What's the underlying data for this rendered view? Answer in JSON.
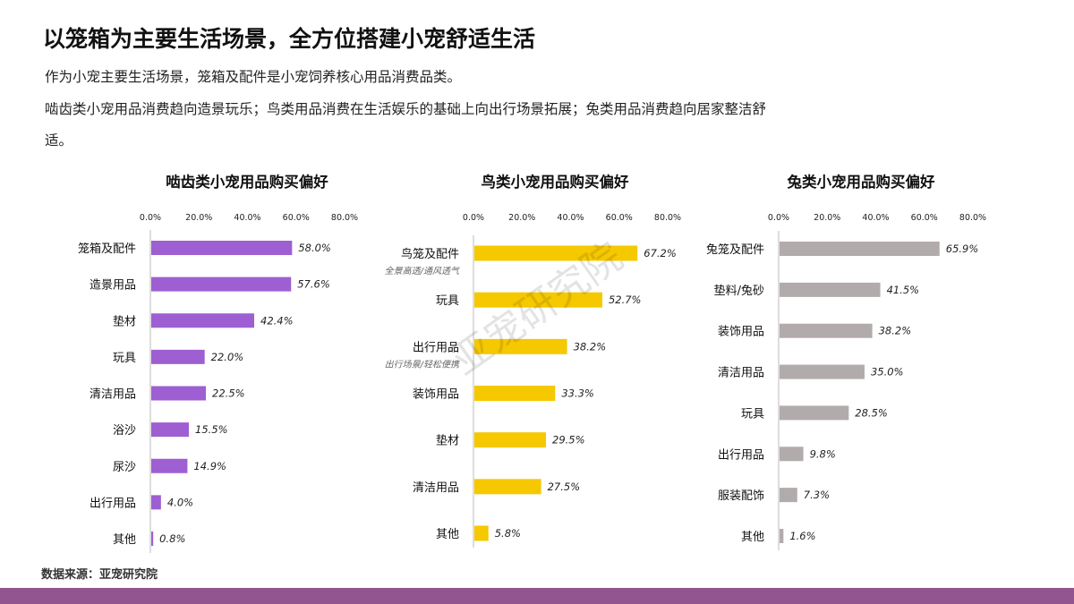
{
  "title": "以笼箱为主要生活场景，全方位搭建小宠舒适生活",
  "subtitle_lines": [
    "作为小宠主要生活场景，笼箱及配件是小宠饲养核心用品消费品类。",
    "啮齿类小宠用品消费趋向造景玩乐；鸟类用品消费在生活娱乐的基础上向出行场景拓展；兔类用品消费趋向居家整洁舒",
    "适。"
  ],
  "watermark": "亚宠研究院",
  "source": "数据来源：亚宠研究院",
  "colors": {
    "rodent": "#9e5fd2",
    "bird": "#f5c800",
    "rabbit": "#b2abab",
    "footer": "#92558f"
  },
  "chart_data": [
    {
      "type": "bar",
      "orientation": "horizontal",
      "title": "啮齿类小宠用品购买偏好",
      "xlim": [
        0,
        80
      ],
      "ticks": [
        "0.0%",
        "20.0%",
        "40.0%",
        "60.0%",
        "80.0%"
      ],
      "categories": [
        "笼箱及配件",
        "造景用品",
        "垫材",
        "玩具",
        "清洁用品",
        "浴沙",
        "尿沙",
        "出行用品",
        "其他"
      ],
      "values": [
        58.0,
        57.6,
        42.4,
        22.0,
        22.5,
        15.5,
        14.9,
        4.0,
        0.8
      ],
      "labels": [
        "58.0%",
        "57.6%",
        "42.4%",
        "22.0%",
        "22.5%",
        "15.5%",
        "14.9%",
        "4.0%",
        "0.8%"
      ],
      "notes": []
    },
    {
      "type": "bar",
      "orientation": "horizontal",
      "title": "鸟类小宠用品购买偏好",
      "xlim": [
        0,
        80
      ],
      "ticks": [
        "0.0%",
        "20.0%",
        "40.0%",
        "60.0%",
        "80.0%"
      ],
      "categories": [
        "鸟笼及配件",
        "玩具",
        "出行用品",
        "装饰用品",
        "垫材",
        "清洁用品",
        "其他"
      ],
      "values": [
        67.2,
        52.7,
        38.2,
        33.3,
        29.5,
        27.5,
        5.8
      ],
      "labels": [
        "67.2%",
        "52.7%",
        "38.2%",
        "33.3%",
        "29.5%",
        "27.5%",
        "5.8%"
      ],
      "notes": [
        "全景高透/通风透气",
        "",
        "出行场景/轻松便携",
        "",
        "",
        "",
        ""
      ]
    },
    {
      "type": "bar",
      "orientation": "horizontal",
      "title": "兔类小宠用品购买偏好",
      "xlim": [
        0,
        80
      ],
      "ticks": [
        "0.0%",
        "20.0%",
        "40.0%",
        "60.0%",
        "80.0%"
      ],
      "categories": [
        "兔笼及配件",
        "垫料/兔砂",
        "装饰用品",
        "清洁用品",
        "玩具",
        "出行用品",
        "服装配饰",
        "其他"
      ],
      "values": [
        65.9,
        41.5,
        38.2,
        35.0,
        28.5,
        9.8,
        7.3,
        1.6
      ],
      "labels": [
        "65.9%",
        "41.5%",
        "38.2%",
        "35.0%",
        "28.5%",
        "9.8%",
        "7.3%",
        "1.6%"
      ],
      "notes": []
    }
  ]
}
